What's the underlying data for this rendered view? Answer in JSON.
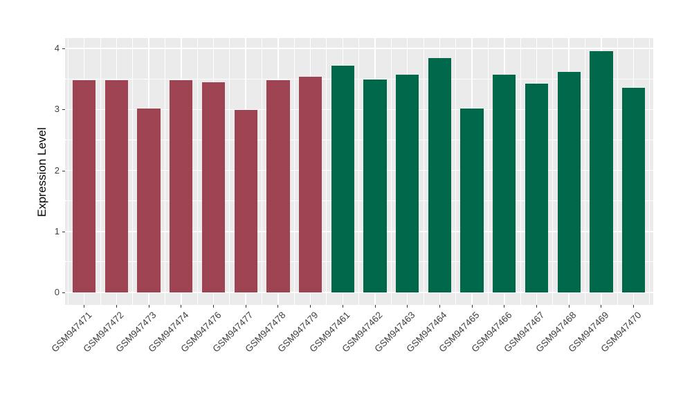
{
  "figure": {
    "background": "#ffffff",
    "panel_background": "#ebebeb",
    "gridline_color": "#ffffff",
    "axis_text_color": "#404040",
    "tick_mark_color": "#333333"
  },
  "chart_data": {
    "type": "bar",
    "title": "",
    "xlabel": "",
    "ylabel": "Expression Level",
    "ylim": [
      0,
      4.2
    ],
    "yticks": [
      0,
      1,
      2,
      3,
      4
    ],
    "grid": "white major gridlines at integers, minor at half-integers, on gray panel; vertical major at category centers, minor between categories",
    "legend_position": "none",
    "x_tick_label_rotation_deg": 45,
    "categories": [
      "GSM947471",
      "GSM947472",
      "GSM947473",
      "GSM947474",
      "GSM947476",
      "GSM947477",
      "GSM947478",
      "GSM947479",
      "GSM947461",
      "GSM947462",
      "GSM947463",
      "GSM947464",
      "GSM947465",
      "GSM947466",
      "GSM947467",
      "GSM947468",
      "GSM947469",
      "GSM947470"
    ],
    "values": [
      3.48,
      3.48,
      3.01,
      3.48,
      3.44,
      2.99,
      3.48,
      3.53,
      3.72,
      3.49,
      3.57,
      3.84,
      3.01,
      3.57,
      3.42,
      3.62,
      3.95,
      3.35
    ],
    "bar_colors": [
      "#9E4352",
      "#9E4352",
      "#9E4352",
      "#9E4352",
      "#9E4352",
      "#9E4352",
      "#9E4352",
      "#9E4352",
      "#00684A",
      "#00684A",
      "#00684A",
      "#00684A",
      "#00684A",
      "#00684A",
      "#00684A",
      "#00684A",
      "#00684A",
      "#00684A"
    ],
    "color_groups": {
      "maroon": "#9E4352",
      "green": "#00684A"
    }
  }
}
